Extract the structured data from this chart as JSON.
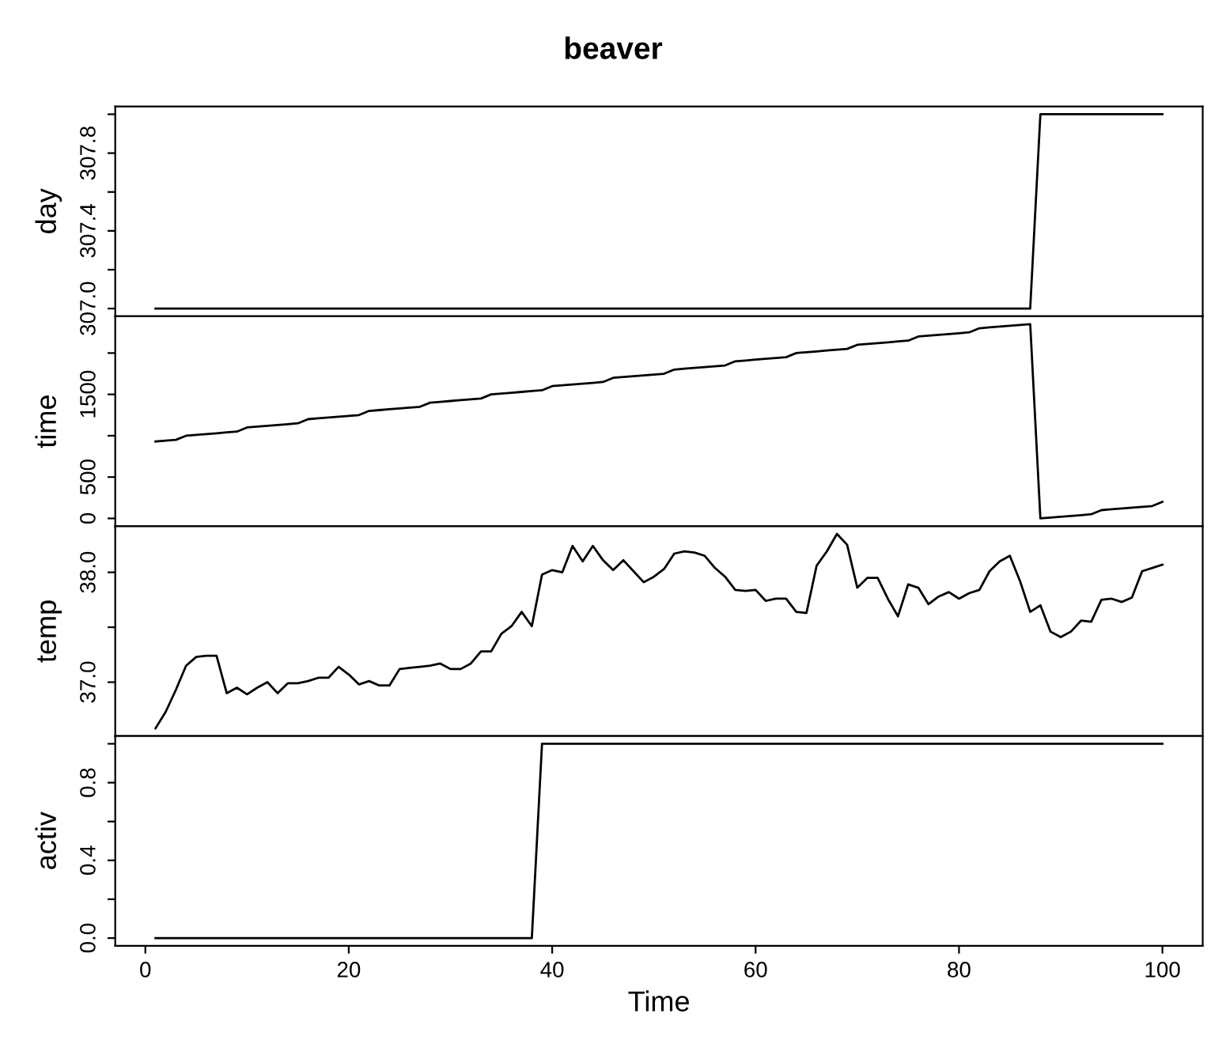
{
  "chart_data": [
    {
      "type": "line",
      "title": "beaver",
      "ylabel": "day",
      "tick_labels": "y",
      "xlim": [
        -2.96,
        103.96
      ],
      "ylim": [
        306.96,
        308.04
      ],
      "yticks": [
        {
          "value": 307.0,
          "label": "307.0"
        },
        {
          "value": 307.2,
          "label": null
        },
        {
          "value": 307.4,
          "label": "307.4"
        },
        {
          "value": 307.6,
          "label": null
        },
        {
          "value": 307.8,
          "label": "307.8"
        },
        {
          "value": 308.0,
          "label": null
        }
      ],
      "grid": false,
      "legend": false,
      "marker": "none",
      "line_style": "solid",
      "x": [
        1,
        2,
        3,
        4,
        5,
        6,
        7,
        8,
        9,
        10,
        11,
        12,
        13,
        14,
        15,
        16,
        17,
        18,
        19,
        20,
        21,
        22,
        23,
        24,
        25,
        26,
        27,
        28,
        29,
        30,
        31,
        32,
        33,
        34,
        35,
        36,
        37,
        38,
        39,
        40,
        41,
        42,
        43,
        44,
        45,
        46,
        47,
        48,
        49,
        50,
        51,
        52,
        53,
        54,
        55,
        56,
        57,
        58,
        59,
        60,
        61,
        62,
        63,
        64,
        65,
        66,
        67,
        68,
        69,
        70,
        71,
        72,
        73,
        74,
        75,
        76,
        77,
        78,
        79,
        80,
        81,
        82,
        83,
        84,
        85,
        86,
        87,
        88,
        89,
        90,
        91,
        92,
        93,
        94,
        95,
        96,
        97,
        98,
        99,
        100
      ],
      "series": [
        {
          "color": "#000000",
          "values": [
            307,
            307,
            307,
            307,
            307,
            307,
            307,
            307,
            307,
            307,
            307,
            307,
            307,
            307,
            307,
            307,
            307,
            307,
            307,
            307,
            307,
            307,
            307,
            307,
            307,
            307,
            307,
            307,
            307,
            307,
            307,
            307,
            307,
            307,
            307,
            307,
            307,
            307,
            307,
            307,
            307,
            307,
            307,
            307,
            307,
            307,
            307,
            307,
            307,
            307,
            307,
            307,
            307,
            307,
            307,
            307,
            307,
            307,
            307,
            307,
            307,
            307,
            307,
            307,
            307,
            307,
            307,
            307,
            307,
            307,
            307,
            307,
            307,
            307,
            307,
            307,
            307,
            307,
            307,
            307,
            307,
            307,
            307,
            307,
            307,
            307,
            307,
            308,
            308,
            308,
            308,
            308,
            308,
            308,
            308,
            308,
            308,
            308,
            308,
            308
          ]
        }
      ]
    },
    {
      "type": "line",
      "ylabel": "time",
      "tick_labels": "y",
      "xlim": [
        -2.96,
        103.96
      ],
      "ylim": [
        -94,
        2444
      ],
      "yticks": [
        {
          "value": 0,
          "label": "0"
        },
        {
          "value": 500,
          "label": "500"
        },
        {
          "value": 1000,
          "label": null
        },
        {
          "value": 1500,
          "label": "1500"
        },
        {
          "value": 2000,
          "label": null
        }
      ],
      "grid": false,
      "legend": false,
      "marker": "none",
      "line_style": "solid",
      "x": [
        1,
        2,
        3,
        4,
        5,
        6,
        7,
        8,
        9,
        10,
        11,
        12,
        13,
        14,
        15,
        16,
        17,
        18,
        19,
        20,
        21,
        22,
        23,
        24,
        25,
        26,
        27,
        28,
        29,
        30,
        31,
        32,
        33,
        34,
        35,
        36,
        37,
        38,
        39,
        40,
        41,
        42,
        43,
        44,
        45,
        46,
        47,
        48,
        49,
        50,
        51,
        52,
        53,
        54,
        55,
        56,
        57,
        58,
        59,
        60,
        61,
        62,
        63,
        64,
        65,
        66,
        67,
        68,
        69,
        70,
        71,
        72,
        73,
        74,
        75,
        76,
        77,
        78,
        79,
        80,
        81,
        82,
        83,
        84,
        85,
        86,
        87,
        88,
        89,
        90,
        91,
        92,
        93,
        94,
        95,
        96,
        97,
        98,
        99,
        100
      ],
      "series": [
        {
          "color": "#000000",
          "values": [
            930,
            940,
            950,
            1000,
            1010,
            1020,
            1030,
            1040,
            1050,
            1100,
            1110,
            1120,
            1130,
            1140,
            1150,
            1200,
            1210,
            1220,
            1230,
            1240,
            1250,
            1300,
            1310,
            1320,
            1330,
            1340,
            1350,
            1400,
            1410,
            1420,
            1430,
            1440,
            1450,
            1500,
            1510,
            1520,
            1530,
            1540,
            1550,
            1600,
            1610,
            1620,
            1630,
            1640,
            1650,
            1700,
            1710,
            1720,
            1730,
            1740,
            1750,
            1800,
            1810,
            1820,
            1830,
            1840,
            1850,
            1900,
            1910,
            1920,
            1930,
            1940,
            1950,
            2000,
            2010,
            2020,
            2030,
            2040,
            2050,
            2100,
            2110,
            2120,
            2130,
            2140,
            2150,
            2200,
            2210,
            2220,
            2230,
            2240,
            2250,
            2300,
            2310,
            2320,
            2330,
            2340,
            2350,
            0,
            10,
            20,
            30,
            40,
            50,
            100,
            110,
            120,
            130,
            140,
            150,
            200
          ]
        }
      ]
    },
    {
      "type": "line",
      "ylabel": "temp",
      "tick_labels": "y",
      "xlim": [
        -2.96,
        103.96
      ],
      "ylim": [
        36.51,
        38.42
      ],
      "yticks": [
        {
          "value": 37.0,
          "label": "37.0"
        },
        {
          "value": 37.5,
          "label": null
        },
        {
          "value": 38.0,
          "label": "38.0"
        }
      ],
      "grid": false,
      "legend": false,
      "marker": "none",
      "line_style": "solid",
      "x": [
        1,
        2,
        3,
        4,
        5,
        6,
        7,
        8,
        9,
        10,
        11,
        12,
        13,
        14,
        15,
        16,
        17,
        18,
        19,
        20,
        21,
        22,
        23,
        24,
        25,
        26,
        27,
        28,
        29,
        30,
        31,
        32,
        33,
        34,
        35,
        36,
        37,
        38,
        39,
        40,
        41,
        42,
        43,
        44,
        45,
        46,
        47,
        48,
        49,
        50,
        51,
        52,
        53,
        54,
        55,
        56,
        57,
        58,
        59,
        60,
        61,
        62,
        63,
        64,
        65,
        66,
        67,
        68,
        69,
        70,
        71,
        72,
        73,
        74,
        75,
        76,
        77,
        78,
        79,
        80,
        81,
        82,
        83,
        84,
        85,
        86,
        87,
        88,
        89,
        90,
        91,
        92,
        93,
        94,
        95,
        96,
        97,
        98,
        99,
        100
      ],
      "series": [
        {
          "color": "#000000",
          "values": [
            36.58,
            36.73,
            36.93,
            37.15,
            37.23,
            37.24,
            37.24,
            36.9,
            36.95,
            36.89,
            36.95,
            37.0,
            36.9,
            36.99,
            36.99,
            37.01,
            37.04,
            37.04,
            37.14,
            37.07,
            36.98,
            37.01,
            36.97,
            36.97,
            37.12,
            37.13,
            37.14,
            37.15,
            37.17,
            37.12,
            37.12,
            37.17,
            37.28,
            37.28,
            37.44,
            37.51,
            37.64,
            37.51,
            37.98,
            38.02,
            38.0,
            38.24,
            38.1,
            38.24,
            38.11,
            38.02,
            38.11,
            38.01,
            37.91,
            37.96,
            38.03,
            38.17,
            38.19,
            38.18,
            38.15,
            38.04,
            37.96,
            37.84,
            37.83,
            37.84,
            37.74,
            37.76,
            37.76,
            37.64,
            37.63,
            38.06,
            38.19,
            38.35,
            38.25,
            37.86,
            37.95,
            37.95,
            37.76,
            37.6,
            37.89,
            37.86,
            37.71,
            37.78,
            37.82,
            37.76,
            37.81,
            37.84,
            38.01,
            38.1,
            38.15,
            37.92,
            37.64,
            37.7,
            37.46,
            37.41,
            37.46,
            37.56,
            37.55,
            37.75,
            37.76,
            37.73,
            37.77,
            38.01,
            38.04,
            38.07
          ]
        }
      ]
    },
    {
      "type": "line",
      "ylabel": "activ",
      "xlabel": "Time",
      "xlim": [
        -2.96,
        103.96
      ],
      "ylim": [
        -0.04,
        1.04
      ],
      "xticks": [
        0,
        20,
        40,
        60,
        80,
        100
      ],
      "yticks": [
        {
          "value": 0.0,
          "label": "0.0"
        },
        {
          "value": 0.2,
          "label": null
        },
        {
          "value": 0.4,
          "label": "0.4"
        },
        {
          "value": 0.6,
          "label": null
        },
        {
          "value": 0.8,
          "label": "0.8"
        },
        {
          "value": 1.0,
          "label": null
        }
      ],
      "grid": false,
      "legend": false,
      "marker": "none",
      "line_style": "solid",
      "x": [
        1,
        2,
        3,
        4,
        5,
        6,
        7,
        8,
        9,
        10,
        11,
        12,
        13,
        14,
        15,
        16,
        17,
        18,
        19,
        20,
        21,
        22,
        23,
        24,
        25,
        26,
        27,
        28,
        29,
        30,
        31,
        32,
        33,
        34,
        35,
        36,
        37,
        38,
        39,
        40,
        41,
        42,
        43,
        44,
        45,
        46,
        47,
        48,
        49,
        50,
        51,
        52,
        53,
        54,
        55,
        56,
        57,
        58,
        59,
        60,
        61,
        62,
        63,
        64,
        65,
        66,
        67,
        68,
        69,
        70,
        71,
        72,
        73,
        74,
        75,
        76,
        77,
        78,
        79,
        80,
        81,
        82,
        83,
        84,
        85,
        86,
        87,
        88,
        89,
        90,
        91,
        92,
        93,
        94,
        95,
        96,
        97,
        98,
        99,
        100
      ],
      "series": [
        {
          "color": "#000000",
          "values": [
            0,
            0,
            0,
            0,
            0,
            0,
            0,
            0,
            0,
            0,
            0,
            0,
            0,
            0,
            0,
            0,
            0,
            0,
            0,
            0,
            0,
            0,
            0,
            0,
            0,
            0,
            0,
            0,
            0,
            0,
            0,
            0,
            0,
            0,
            0,
            0,
            0,
            0,
            1,
            1,
            1,
            1,
            1,
            1,
            1,
            1,
            1,
            1,
            1,
            1,
            1,
            1,
            1,
            1,
            1,
            1,
            1,
            1,
            1,
            1,
            1,
            1,
            1,
            1,
            1,
            1,
            1,
            1,
            1,
            1,
            1,
            1,
            1,
            1,
            1,
            1,
            1,
            1,
            1,
            1,
            1,
            1,
            1,
            1,
            1,
            1,
            1,
            1,
            1,
            1,
            1,
            1,
            1,
            1,
            1,
            1,
            1,
            1,
            1,
            1
          ]
        }
      ]
    }
  ]
}
